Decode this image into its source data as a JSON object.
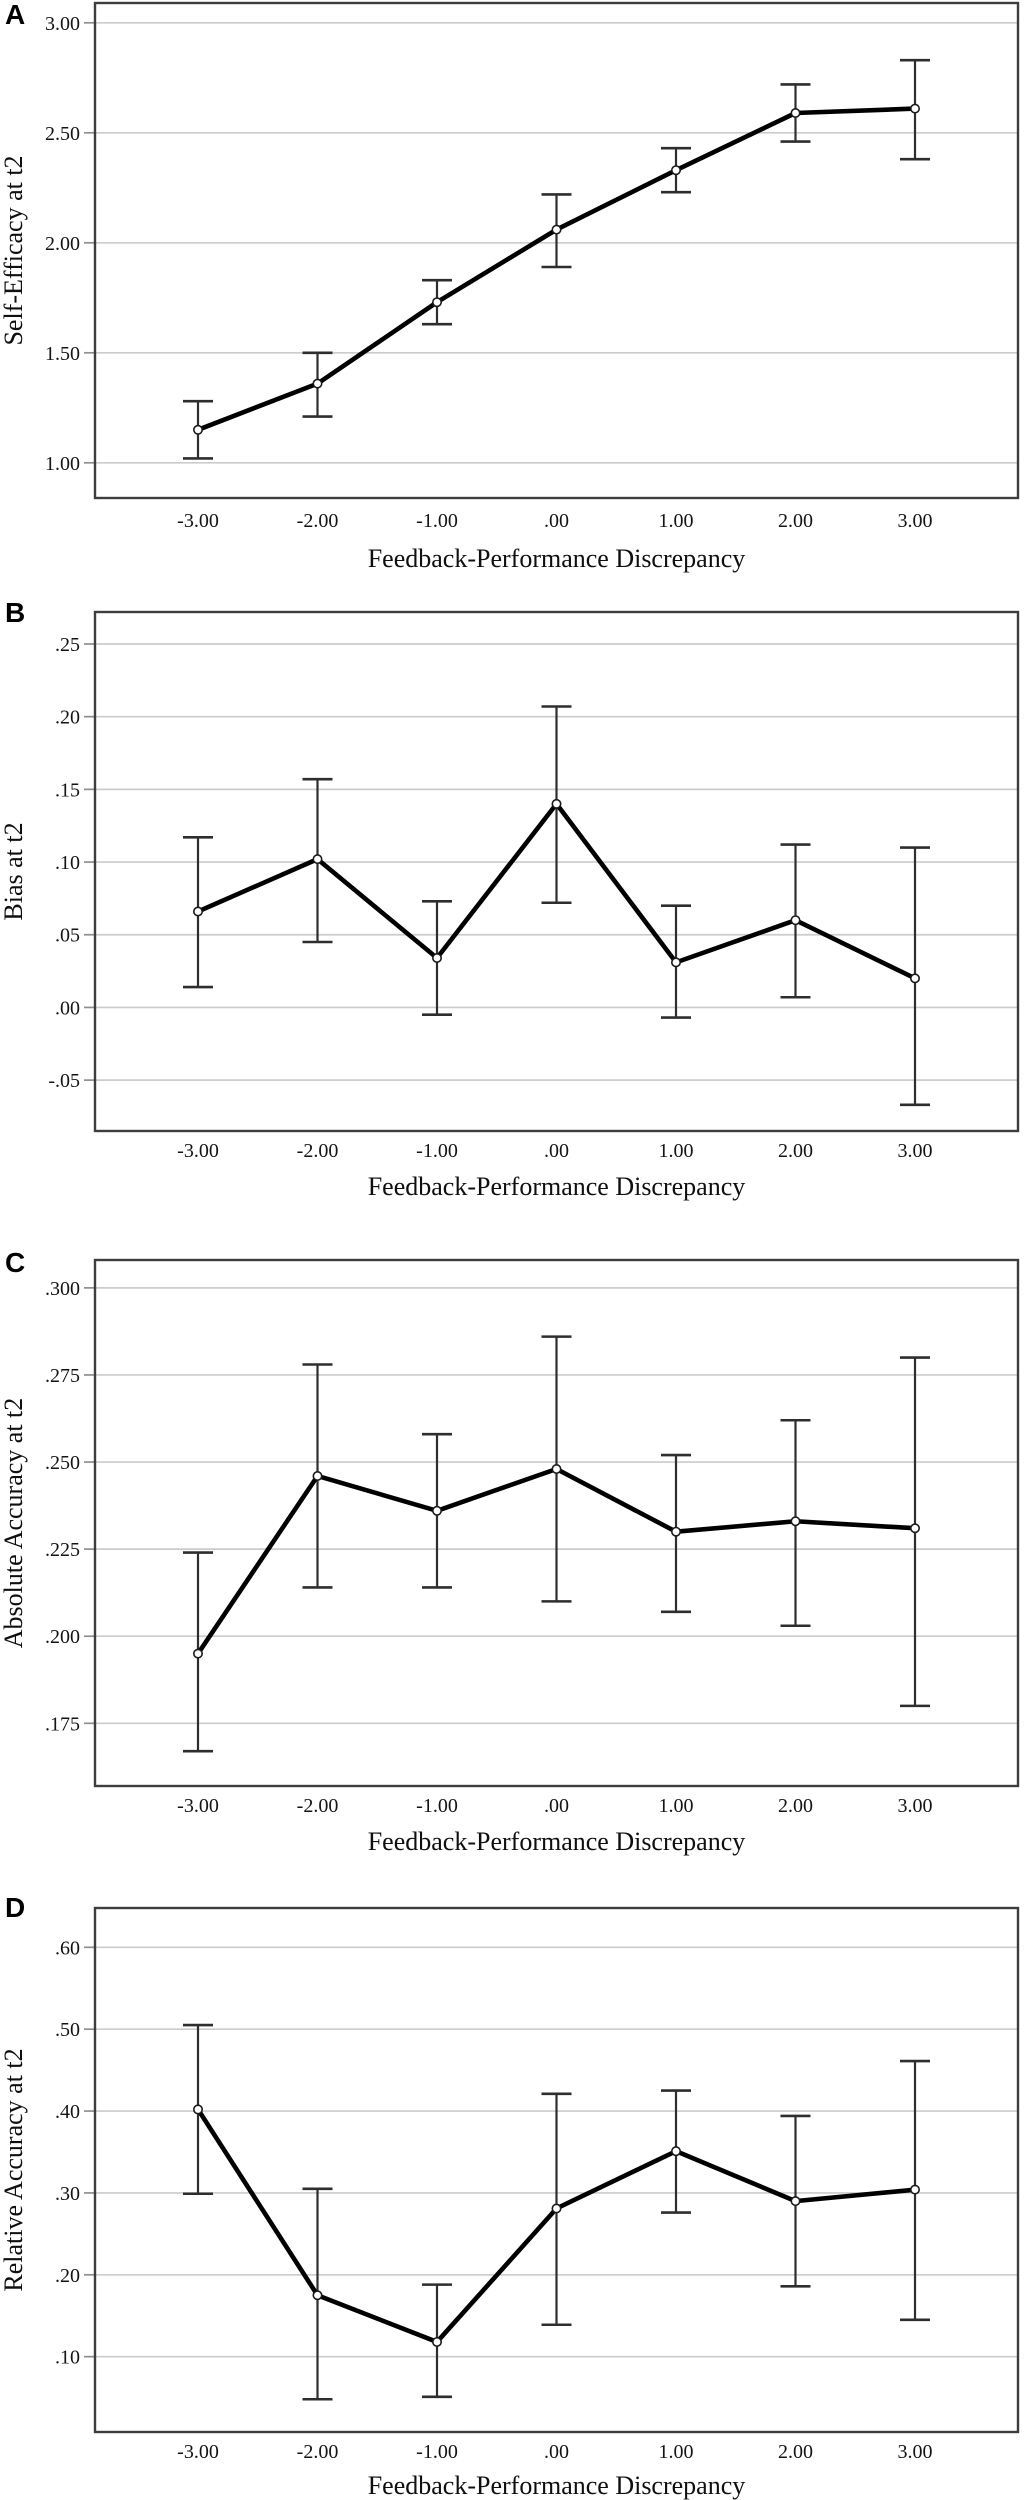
{
  "colors": {
    "background": "#ffffff",
    "series_line": "#000000",
    "error_bar": "#2e2e2e",
    "gridline": "#cccccc",
    "tick_stub": "#8f8f8f",
    "frame": "#3d3d3d",
    "marker_fill": "#ffffff",
    "marker_stroke": "#1a1a1a",
    "text": "#0f0f0f"
  },
  "chart_data": [
    {
      "panel": "A",
      "type": "line",
      "xlabel": "Feedback-Performance Discrepancy",
      "ylabel": "Self-Efficacy at t2",
      "categories": [
        "-3.00",
        "-2.00",
        "-1.00",
        ".00",
        "1.00",
        "2.00",
        "3.00"
      ],
      "x": [
        -3,
        -2,
        -1,
        0,
        1,
        2,
        3
      ],
      "values": [
        1.15,
        1.36,
        1.73,
        2.06,
        2.33,
        2.59,
        2.61
      ],
      "err_low": [
        1.02,
        1.21,
        1.63,
        1.89,
        2.23,
        2.46,
        2.38
      ],
      "err_high": [
        1.28,
        1.5,
        1.83,
        2.22,
        2.43,
        2.72,
        2.83
      ],
      "yticks": [
        1.0,
        1.5,
        2.0,
        2.5,
        3.0
      ],
      "ytick_labels": [
        "1.00",
        "1.50",
        "2.00",
        "2.50",
        "3.00"
      ],
      "ylim": [
        0.84,
        3.09
      ],
      "grid": "horizontal",
      "legend": "none",
      "marker": "open-circle"
    },
    {
      "panel": "B",
      "type": "line",
      "xlabel": "Feedback-Performance Discrepancy",
      "ylabel": "Bias at t2",
      "categories": [
        "-3.00",
        "-2.00",
        "-1.00",
        ".00",
        "1.00",
        "2.00",
        "3.00"
      ],
      "x": [
        -3,
        -2,
        -1,
        0,
        1,
        2,
        3
      ],
      "values": [
        0.066,
        0.102,
        0.034,
        0.14,
        0.031,
        0.06,
        0.02
      ],
      "err_low": [
        0.014,
        0.045,
        -0.005,
        0.072,
        -0.007,
        0.007,
        -0.067
      ],
      "err_high": [
        0.117,
        0.157,
        0.073,
        0.207,
        0.07,
        0.112,
        0.11
      ],
      "yticks": [
        -0.05,
        0.0,
        0.05,
        0.1,
        0.15,
        0.2,
        0.25
      ],
      "ytick_labels": [
        "-.05",
        ".00",
        ".05",
        ".10",
        ".15",
        ".20",
        ".25"
      ],
      "ylim": [
        -0.085,
        0.272
      ],
      "grid": "horizontal",
      "legend": "none",
      "marker": "open-circle"
    },
    {
      "panel": "C",
      "type": "line",
      "xlabel": "Feedback-Performance Discrepancy",
      "ylabel": "Absolute Accuracy at t2",
      "categories": [
        "-3.00",
        "-2.00",
        "-1.00",
        ".00",
        "1.00",
        "2.00",
        "3.00"
      ],
      "x": [
        -3,
        -2,
        -1,
        0,
        1,
        2,
        3
      ],
      "values": [
        0.195,
        0.246,
        0.236,
        0.248,
        0.23,
        0.233,
        0.231
      ],
      "err_low": [
        0.167,
        0.214,
        0.214,
        0.21,
        0.207,
        0.203,
        0.18
      ],
      "err_high": [
        0.224,
        0.278,
        0.258,
        0.286,
        0.252,
        0.262,
        0.28
      ],
      "yticks": [
        0.175,
        0.2,
        0.225,
        0.25,
        0.275,
        0.3
      ],
      "ytick_labels": [
        ".175",
        ".200",
        ".225",
        ".250",
        ".275",
        ".300"
      ],
      "ylim": [
        0.157,
        0.308
      ],
      "grid": "horizontal",
      "legend": "none",
      "marker": "open-circle"
    },
    {
      "panel": "D",
      "type": "line",
      "xlabel": "Feedback-Performance Discrepancy",
      "ylabel": "Relative Accuracy at t2",
      "categories": [
        "-3.00",
        "-2.00",
        "-1.00",
        ".00",
        "1.00",
        "2.00",
        "3.00"
      ],
      "x": [
        -3,
        -2,
        -1,
        0,
        1,
        2,
        3
      ],
      "values": [
        0.402,
        0.175,
        0.118,
        0.281,
        0.351,
        0.29,
        0.304
      ],
      "err_low": [
        0.299,
        0.048,
        0.051,
        0.139,
        0.276,
        0.186,
        0.145
      ],
      "err_high": [
        0.505,
        0.305,
        0.188,
        0.421,
        0.425,
        0.394,
        0.461
      ],
      "yticks": [
        0.1,
        0.2,
        0.3,
        0.4,
        0.5,
        0.6
      ],
      "ytick_labels": [
        ".10",
        ".20",
        ".30",
        ".40",
        ".50",
        ".60"
      ],
      "ylim": [
        0.008,
        0.648
      ],
      "grid": "horizontal",
      "legend": "none",
      "marker": "open-circle"
    }
  ]
}
